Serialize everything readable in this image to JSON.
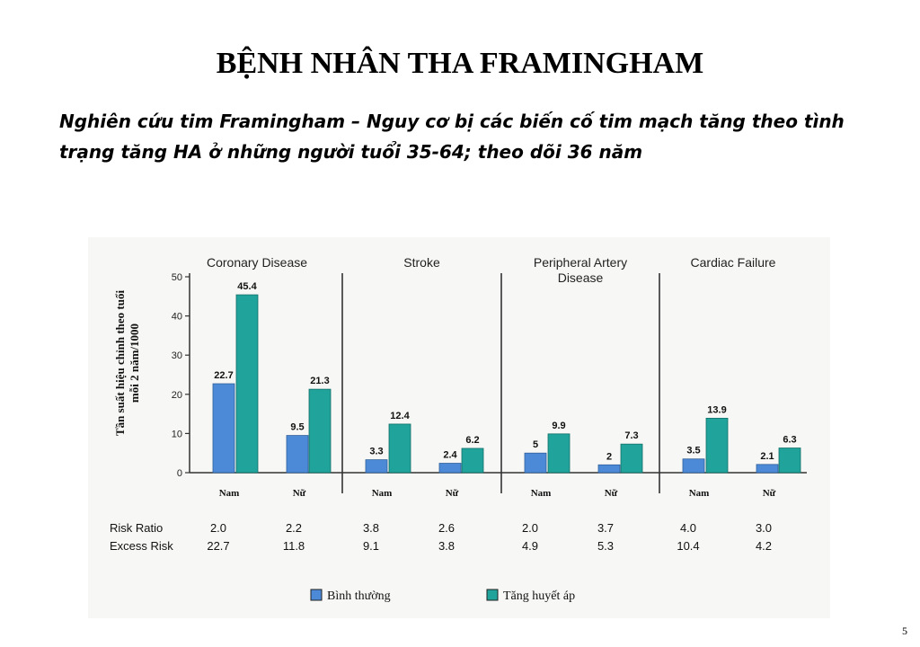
{
  "title": "BỆNH NHÂN THA FRAMINGHAM",
  "subtitle": "Nghiên cứu tim Framingham – Nguy cơ bị các biến cố tim mạch tăng theo tình trạng tăng HA ở những người tuổi 35-64; theo dõi 36 năm",
  "slide_number": "5",
  "chart_data": {
    "type": "bar",
    "ylabel_line1": "Tần suất hiệu chỉnh theo tuổi",
    "ylabel_line2": "mỗi 2 năm/1000",
    "ylim": [
      0,
      50
    ],
    "yticks": [
      "0",
      "10",
      "20",
      "30",
      "40",
      "50"
    ],
    "colors": {
      "normal": "#4c8ad8",
      "hypertension": "#1fa39a"
    },
    "legend": [
      {
        "key": "normal",
        "label": "Bình thường"
      },
      {
        "key": "hypertension",
        "label": "Tăng huyết áp"
      }
    ],
    "row_labels": {
      "risk_ratio": "Risk Ratio",
      "excess_risk": "Excess Risk"
    },
    "panels": [
      {
        "title": [
          "Coronary Disease"
        ],
        "groups": [
          {
            "label": "Nam",
            "normal": 22.7,
            "hypertension": 45.4,
            "normal_label": "22.7",
            "hypertension_label": "45.4",
            "risk_ratio": "2.0",
            "excess_risk": "22.7"
          },
          {
            "label": "Nữ",
            "normal": 9.5,
            "hypertension": 21.3,
            "normal_label": "9.5",
            "hypertension_label": "21.3",
            "risk_ratio": "2.2",
            "excess_risk": "11.8"
          }
        ]
      },
      {
        "title": [
          "Stroke"
        ],
        "groups": [
          {
            "label": "Nam",
            "normal": 3.3,
            "hypertension": 12.4,
            "normal_label": "3.3",
            "hypertension_label": "12.4",
            "risk_ratio": "3.8",
            "excess_risk": "9.1"
          },
          {
            "label": "Nữ",
            "normal": 2.4,
            "hypertension": 6.2,
            "normal_label": "2.4",
            "hypertension_label": "6.2",
            "risk_ratio": "2.6",
            "excess_risk": "3.8"
          }
        ]
      },
      {
        "title": [
          "Peripheral Artery",
          "Disease"
        ],
        "groups": [
          {
            "label": "Nam",
            "normal": 5,
            "hypertension": 9.9,
            "normal_label": "5",
            "hypertension_label": "9.9",
            "risk_ratio": "2.0",
            "excess_risk": "4.9"
          },
          {
            "label": "Nữ",
            "normal": 2,
            "hypertension": 7.3,
            "normal_label": "2",
            "hypertension_label": "7.3",
            "risk_ratio": "3.7",
            "excess_risk": "5.3"
          }
        ]
      },
      {
        "title": [
          "Cardiac Failure"
        ],
        "groups": [
          {
            "label": "Nam",
            "normal": 3.5,
            "hypertension": 13.9,
            "normal_label": "3.5",
            "hypertension_label": "13.9",
            "risk_ratio": "4.0",
            "excess_risk": "10.4"
          },
          {
            "label": "Nữ",
            "normal": 2.1,
            "hypertension": 6.3,
            "normal_label": "2.1",
            "hypertension_label": "6.3",
            "risk_ratio": "3.0",
            "excess_risk": "4.2"
          }
        ]
      }
    ]
  }
}
